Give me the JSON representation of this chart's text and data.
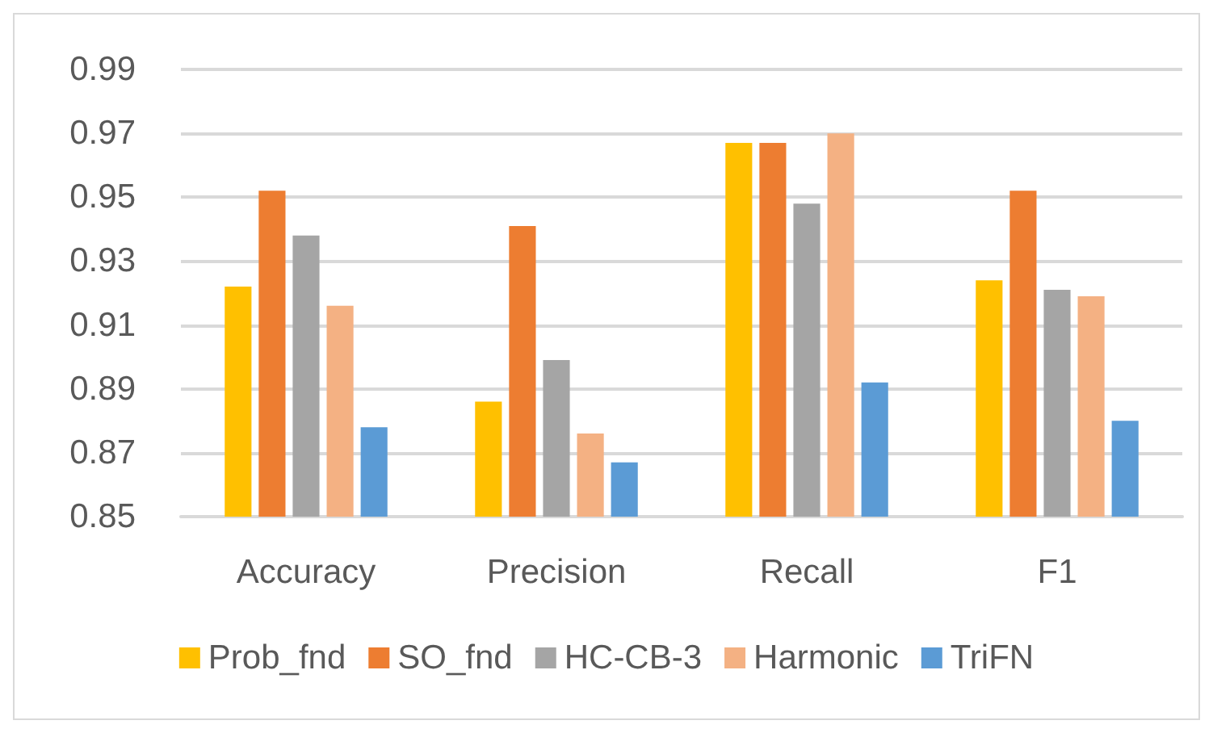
{
  "chart_data": {
    "type": "bar",
    "categories": [
      "Accuracy",
      "Precision",
      "Recall",
      "F1"
    ],
    "series": [
      {
        "name": "Prob_fnd",
        "color": "#ffc000",
        "values": [
          0.922,
          0.886,
          0.967,
          0.924
        ]
      },
      {
        "name": "SO_fnd",
        "color": "#ed7d31",
        "values": [
          0.952,
          0.941,
          0.967,
          0.952
        ]
      },
      {
        "name": "HC-CB-3",
        "color": "#a5a5a5",
        "values": [
          0.938,
          0.899,
          0.948,
          0.921
        ]
      },
      {
        "name": "Harmonic",
        "color": "#f4b183",
        "values": [
          0.916,
          0.876,
          0.97,
          0.919
        ]
      },
      {
        "name": "TriFN",
        "color": "#5b9bd5",
        "values": [
          0.878,
          0.867,
          0.892,
          0.88
        ]
      }
    ],
    "ylim": [
      0.85,
      0.99
    ],
    "yticks": [
      0.85,
      0.87,
      0.89,
      0.91,
      0.93,
      0.95,
      0.97,
      0.99
    ],
    "grid": "y",
    "legend": "bottom"
  }
}
